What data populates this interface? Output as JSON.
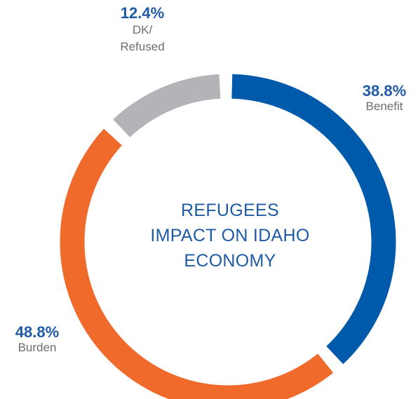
{
  "colors": {
    "benefit": "#005aab",
    "burden": "#f06a2c",
    "dk_refused": "#b3b4b8",
    "title": "#1f5aa6",
    "label_text": "#6e6e6e"
  },
  "chart_data": {
    "type": "pie",
    "style": "donut",
    "title_lines": [
      "REFUGEES",
      "IMPACT ON IDAHO",
      "ECONOMY"
    ],
    "slices": [
      {
        "label": "Benefit",
        "value": 38.8,
        "value_text": "38.8%",
        "color": "#005aab"
      },
      {
        "label": "Burden",
        "value": 48.8,
        "value_text": "48.8%",
        "color": "#f06a2c"
      },
      {
        "label": "DK/ Refused",
        "label_lines": [
          "DK/",
          "Refused"
        ],
        "value": 12.4,
        "value_text": "12.4%",
        "color": "#b3b4b8"
      }
    ],
    "legend": "none"
  }
}
